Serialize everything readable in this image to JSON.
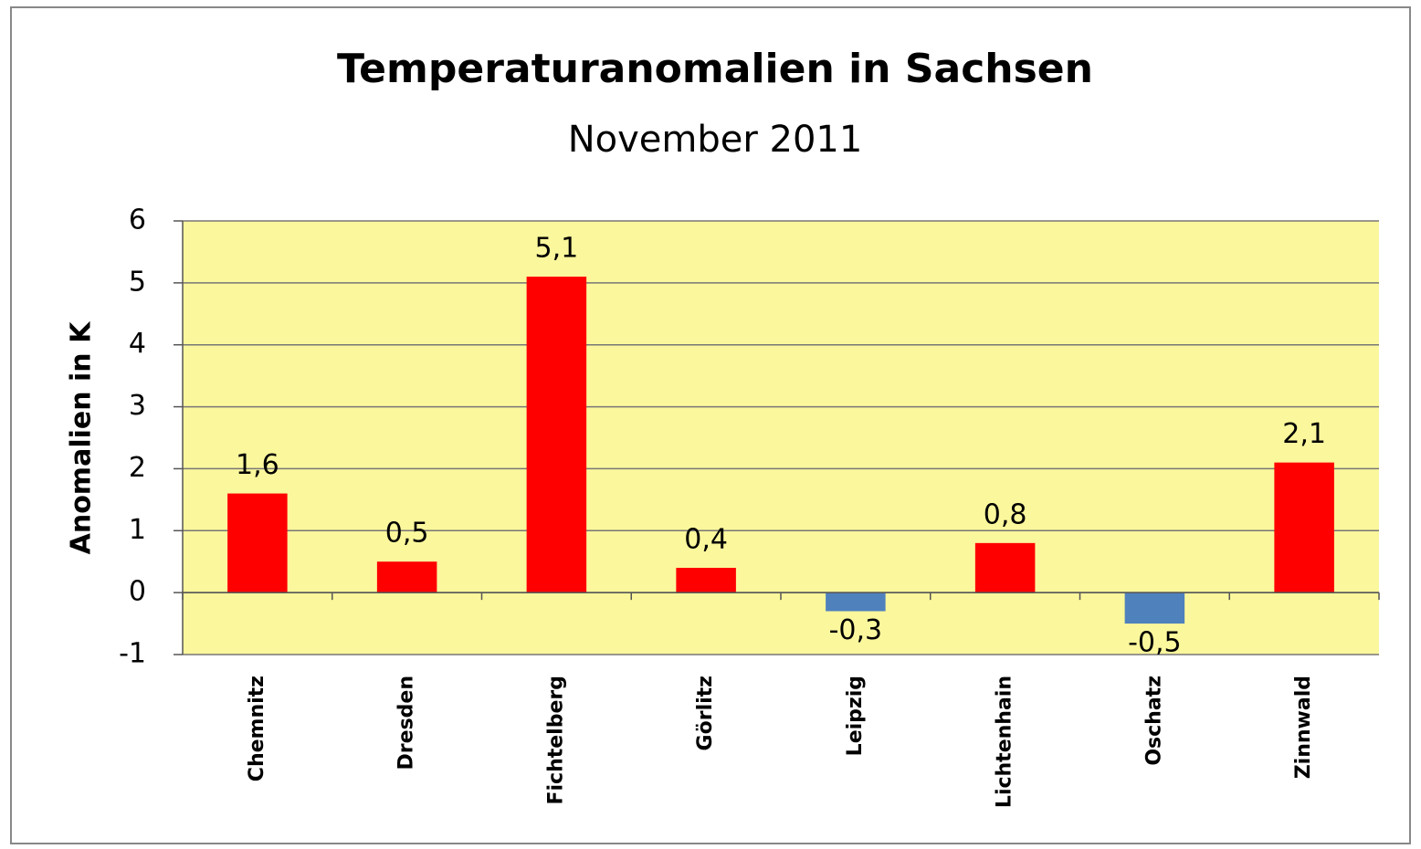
{
  "chart_data": {
    "type": "bar",
    "title": "Temperaturanomalien in Sachsen",
    "subtitle": "November 2011",
    "y_label": "Anomalien in K",
    "categories": [
      "Chemnitz",
      "Dresden",
      "Fichtelberg",
      "Görlitz",
      "Leipzig",
      "Lichtenhain",
      "Oschatz",
      "Zinnwald"
    ],
    "values": [
      1.6,
      0.5,
      5.1,
      0.4,
      -0.3,
      0.8,
      -0.5,
      2.1
    ],
    "value_labels": [
      "1,6",
      "0,5",
      "5,1",
      "0,4",
      "-0,3",
      "0,8",
      "-0,5",
      "2,1"
    ],
    "color": "#ff0000",
    "negative_color": "#4f81bd",
    "ylim": [
      -1,
      6
    ],
    "yticks": [
      -1,
      0,
      1,
      2,
      3,
      4,
      5,
      6
    ],
    "grid": true
  }
}
